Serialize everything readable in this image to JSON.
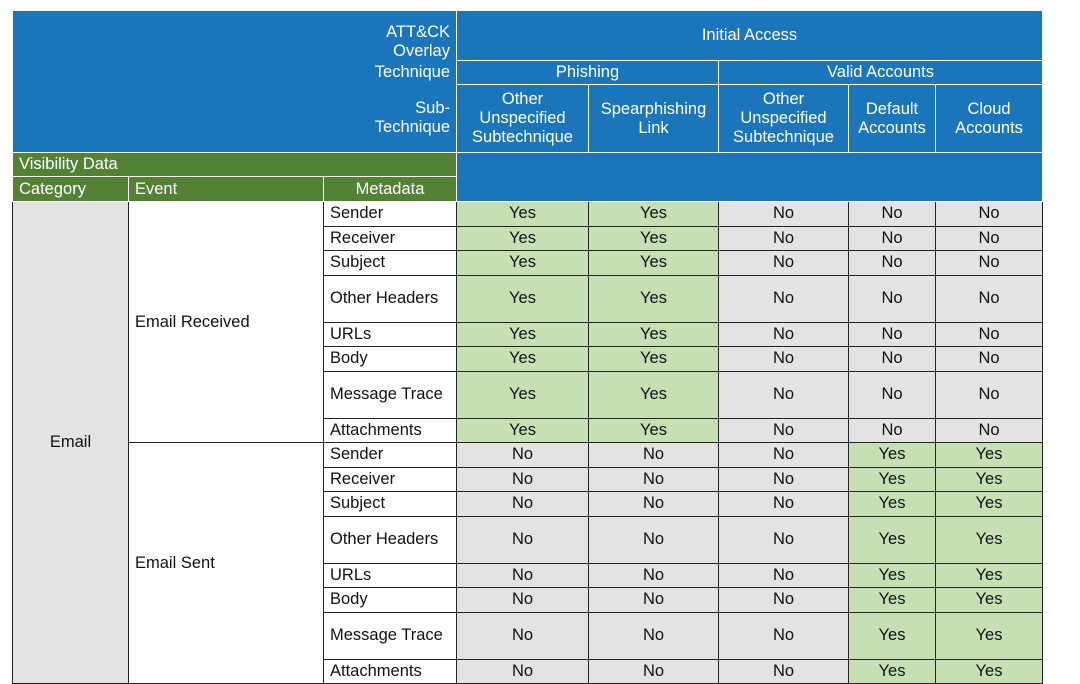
{
  "header": {
    "overlay": "ATT&CK Overlay",
    "tactic": "Initial Access",
    "technique_label": "Technique",
    "sub_technique_label": "Sub-Technique",
    "techniques": [
      {
        "name": "Phishing",
        "sub_techniques": [
          "Other Unspecified Subtechnique",
          "Spearphishing Link"
        ]
      },
      {
        "name": "Valid Accounts",
        "sub_techniques": [
          "Other Unspecified Subtechnique",
          "Default Accounts",
          "Cloud Accounts"
        ]
      }
    ],
    "visibility_label": "Visibility Data",
    "columns": [
      "Category",
      "Event",
      "Metadata"
    ]
  },
  "rows": [
    {
      "category": "Email",
      "events": [
        {
          "event": "Email Received",
          "metadata": [
            {
              "name": "Sender",
              "values": [
                "Yes",
                "Yes",
                "No",
                "No",
                "No"
              ]
            },
            {
              "name": "Receiver",
              "values": [
                "Yes",
                "Yes",
                "No",
                "No",
                "No"
              ]
            },
            {
              "name": "Subject",
              "values": [
                "Yes",
                "Yes",
                "No",
                "No",
                "No"
              ]
            },
            {
              "name": "Other Headers",
              "values": [
                "Yes",
                "Yes",
                "No",
                "No",
                "No"
              ]
            },
            {
              "name": "URLs",
              "values": [
                "Yes",
                "Yes",
                "No",
                "No",
                "No"
              ]
            },
            {
              "name": "Body",
              "values": [
                "Yes",
                "Yes",
                "No",
                "No",
                "No"
              ]
            },
            {
              "name": "Message Trace",
              "values": [
                "Yes",
                "Yes",
                "No",
                "No",
                "No"
              ]
            },
            {
              "name": "Attachments",
              "values": [
                "Yes",
                "Yes",
                "No",
                "No",
                "No"
              ]
            }
          ]
        },
        {
          "event": "Email Sent",
          "metadata": [
            {
              "name": "Sender",
              "values": [
                "No",
                "No",
                "No",
                "Yes",
                "Yes"
              ]
            },
            {
              "name": "Receiver",
              "values": [
                "No",
                "No",
                "No",
                "Yes",
                "Yes"
              ]
            },
            {
              "name": "Subject",
              "values": [
                "No",
                "No",
                "No",
                "Yes",
                "Yes"
              ]
            },
            {
              "name": "Other Headers",
              "values": [
                "No",
                "No",
                "No",
                "Yes",
                "Yes"
              ]
            },
            {
              "name": "URLs",
              "values": [
                "No",
                "No",
                "No",
                "Yes",
                "Yes"
              ]
            },
            {
              "name": "Body",
              "values": [
                "No",
                "No",
                "No",
                "Yes",
                "Yes"
              ]
            },
            {
              "name": "Message Trace",
              "values": [
                "No",
                "No",
                "No",
                "Yes",
                "Yes"
              ]
            },
            {
              "name": "Attachments",
              "values": [
                "No",
                "No",
                "No",
                "Yes",
                "Yes"
              ]
            }
          ]
        }
      ]
    }
  ]
}
